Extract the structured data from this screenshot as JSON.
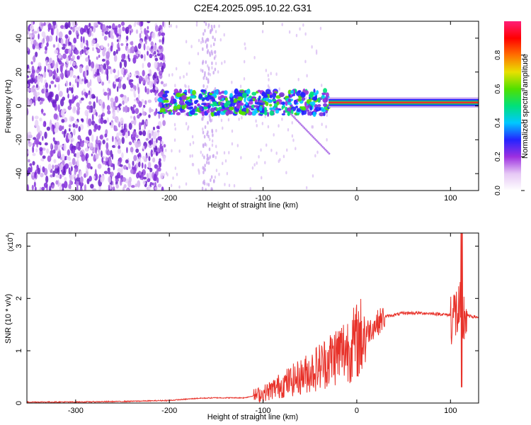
{
  "title": "C2E4.2025.095.10.22.G31",
  "colors": {
    "snr_line": "#e8322a",
    "spectrogram_noise": "#7b2fe0",
    "spectrogram_line": "#e8322a",
    "colorbar": [
      "#ffffff",
      "#e6c8f5",
      "#9d2fe0",
      "#2424ff",
      "#00c8ff",
      "#00e07a",
      "#50e000",
      "#e8e000",
      "#ff7000",
      "#ff0000",
      "#ff1e78"
    ]
  },
  "chart_data": [
    {
      "type": "heatmap",
      "xlabel": "Height of straight line (km)",
      "ylabel": "Frequency (Hz)",
      "xlim": [
        -352,
        130
      ],
      "ylim": [
        -50,
        50
      ],
      "xticks": [
        -300,
        -200,
        -100,
        0,
        100
      ],
      "xtick_labels": [
        "-300",
        "-200",
        "-100",
        "0",
        "100"
      ],
      "yticks": [
        -40,
        -20,
        0,
        20,
        40
      ],
      "ytick_labels": [
        "-40",
        "-20",
        "0",
        "20",
        "40"
      ],
      "colorbar": {
        "label": "Normalized spectral amplitude",
        "range": [
          0,
          1
        ],
        "ticks": [
          0.0,
          0.2,
          0.4,
          0.6,
          0.8
        ],
        "tick_labels": [
          "0.0",
          "0.2",
          "0.4",
          "0.6",
          "0.8"
        ]
      },
      "features": {
        "signal_frequency_hz": 2,
        "noise_region_km": [
          -352,
          -205
        ],
        "signal_onset_km": -210,
        "strong_signal_km": [
          -30,
          130
        ]
      }
    },
    {
      "type": "line",
      "xlabel": "Height of straight line (km)",
      "ylabel": "SNR (10 * v/v)",
      "y_scale_label": "(x10",
      "y_scale_exponent": "4",
      "xlim": [
        -352,
        130
      ],
      "ylim": [
        0,
        3.25
      ],
      "xticks": [
        -300,
        -200,
        -100,
        0,
        100
      ],
      "xtick_labels": [
        "-300",
        "-200",
        "-100",
        "0",
        "100"
      ],
      "yticks": [
        0,
        1,
        2,
        3
      ],
      "ytick_labels": [
        "0",
        "1",
        "2",
        "3"
      ],
      "series": [
        {
          "x": [
            -352,
            -300,
            -250,
            -200,
            -170,
            -150,
            -120,
            -100,
            -80,
            -60,
            -40,
            -20,
            -5,
            10,
            30,
            50,
            70,
            90,
            100,
            105,
            110,
            113,
            115,
            120,
            130
          ],
          "y": [
            0.02,
            0.02,
            0.03,
            0.05,
            0.09,
            0.1,
            0.1,
            0.18,
            0.35,
            0.5,
            0.7,
            0.95,
            1.1,
            1.35,
            1.65,
            1.72,
            1.72,
            1.7,
            1.68,
            1.7,
            1.75,
            1.5,
            1.68,
            1.66,
            1.64
          ]
        }
      ]
    }
  ]
}
